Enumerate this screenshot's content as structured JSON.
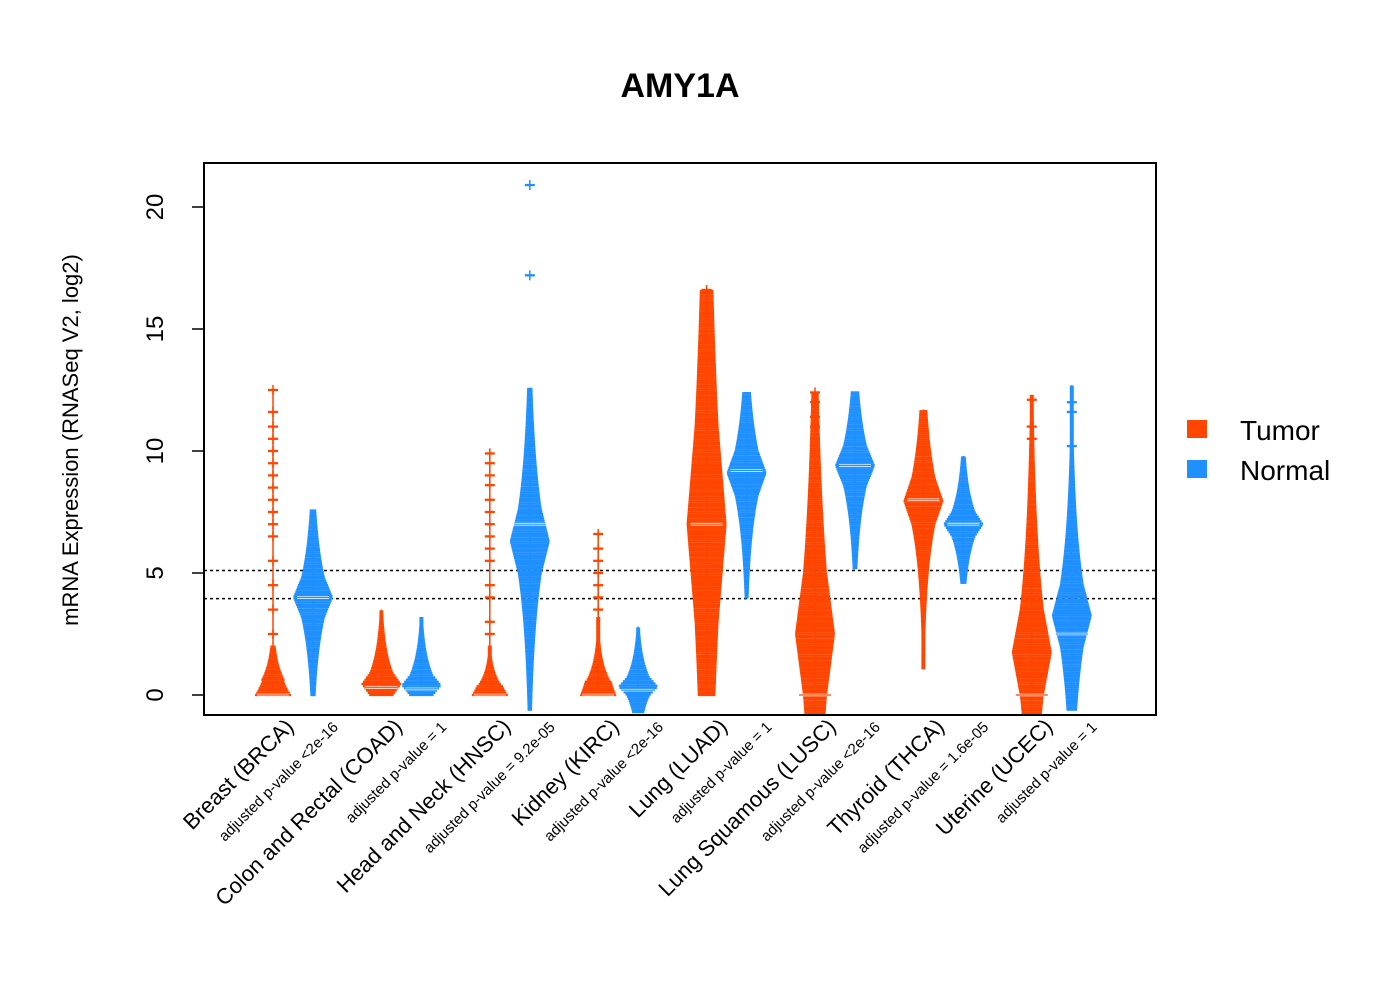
{
  "chart_data": {
    "type": "beeswarm",
    "title": "AMY1A",
    "xlabel": "",
    "ylabel": "mRNA Expression (RNASeq V2, log2)",
    "ylim": [
      -0.85,
      21.8
    ],
    "yticks": [
      0,
      5,
      10,
      15,
      20
    ],
    "reference_lines": [
      3.95,
      5.1
    ],
    "grid": false,
    "legend_position": "right",
    "colors": {
      "Tumor": "#FF4500",
      "Normal": "#1E90FF"
    },
    "legend": [
      "Tumor",
      "Normal"
    ],
    "categories": [
      {
        "label": "Breast (BRCA)",
        "pvalue": "adjusted p-value <2e-16",
        "tumor": {
          "min": 0.0,
          "q1": 0.0,
          "median": 0.0,
          "q3": 0.6,
          "max": 12.5,
          "dense_max": 2.0,
          "outliers": [
            2.5,
            3.5,
            4.5,
            5.5,
            6.5,
            7.0,
            7.5,
            8.0,
            8.5,
            9.0,
            9.5,
            10.0,
            10.5,
            11.0,
            11.6,
            12.5
          ]
        },
        "normal": {
          "min": 0.0,
          "q1": 3.2,
          "median": 4.0,
          "q3": 4.8,
          "max": 7.6,
          "outliers": []
        }
      },
      {
        "label": "Colon and Rectal (COAD)",
        "pvalue": "adjusted p-value = 1",
        "tumor": {
          "min": 0.0,
          "q1": 0.0,
          "median": 0.3,
          "q3": 0.9,
          "max": 3.5,
          "outliers": []
        },
        "normal": {
          "min": 0.0,
          "q1": 0.0,
          "median": 0.25,
          "q3": 0.8,
          "max": 3.2,
          "outliers": []
        }
      },
      {
        "label": "Head and Neck (HNSC)",
        "pvalue": "adjusted p-value = 9.2e-05",
        "tumor": {
          "min": 0.0,
          "q1": 0.0,
          "median": 0.0,
          "q3": 0.4,
          "max": 10.1,
          "dense_max": 2.0,
          "outliers": [
            2.5,
            3.0,
            4.0,
            4.5,
            5.5,
            6.0,
            6.5,
            7.0,
            7.5,
            8.0,
            8.6,
            9.0,
            9.5,
            9.9
          ]
        },
        "normal": {
          "min": -0.6,
          "q1": 5.0,
          "median": 7.0,
          "q3": 7.6,
          "max": 12.6,
          "outliers": [
            17.2,
            20.9
          ]
        }
      },
      {
        "label": "Kidney (KIRC)",
        "pvalue": "adjusted p-value <2e-16",
        "tumor": {
          "min": 0.0,
          "q1": 0.0,
          "median": 0.0,
          "q3": 0.6,
          "max": 6.6,
          "dense_max": 3.2,
          "outliers": [
            3.5,
            4.0,
            4.5,
            5.0,
            5.5,
            6.0,
            6.6
          ]
        },
        "normal": {
          "min": -0.7,
          "q1": 0.0,
          "median": 0.2,
          "q3": 0.7,
          "max": 2.8,
          "outliers": []
        }
      },
      {
        "label": "Lung (LUAD)",
        "pvalue": "adjusted p-value = 1",
        "tumor": {
          "min": 0.0,
          "q1": 3.0,
          "median": 7.0,
          "q3": 11.0,
          "max": 16.6,
          "outliers": [
            14.0,
            14.5,
            14.9,
            15.5,
            16.6
          ]
        },
        "normal": {
          "min": 4.0,
          "q1": 8.2,
          "median": 9.2,
          "q3": 10.0,
          "max": 12.4,
          "outliers": []
        }
      },
      {
        "label": "Lung Squamous (LUSC)",
        "pvalue": "adjusted p-value <2e-16",
        "tumor": {
          "min": -0.8,
          "q1": 0.0,
          "median": 0.0,
          "q3": 5.0,
          "max": 12.4,
          "outliers": [
            10.5,
            11.0,
            11.4,
            12.0,
            12.4
          ]
        },
        "normal": {
          "min": 5.2,
          "q1": 8.6,
          "median": 9.4,
          "q3": 10.2,
          "max": 12.4,
          "outliers": []
        }
      },
      {
        "label": "Thyroid (THCA)",
        "pvalue": "adjusted p-value = 1.6e-05",
        "tumor": {
          "min": 1.1,
          "q1": 7.0,
          "median": 8.0,
          "q3": 8.9,
          "max": 11.7,
          "outliers": []
        },
        "normal": {
          "min": 4.6,
          "q1": 6.5,
          "median": 7.0,
          "q3": 7.5,
          "max": 9.8,
          "outliers": []
        }
      },
      {
        "label": "Uterine (UCEC)",
        "pvalue": "adjusted p-value = 1",
        "tumor": {
          "min": -0.8,
          "q1": 0.0,
          "median": 0.0,
          "q3": 3.5,
          "max": 12.3,
          "outliers": [
            10.5,
            11.0,
            12.1
          ]
        },
        "normal": {
          "min": -0.6,
          "q1": 2.0,
          "median": 2.5,
          "q3": 4.5,
          "max": 12.7,
          "outliers": [
            10.2,
            11.6,
            12.0
          ]
        }
      }
    ]
  }
}
